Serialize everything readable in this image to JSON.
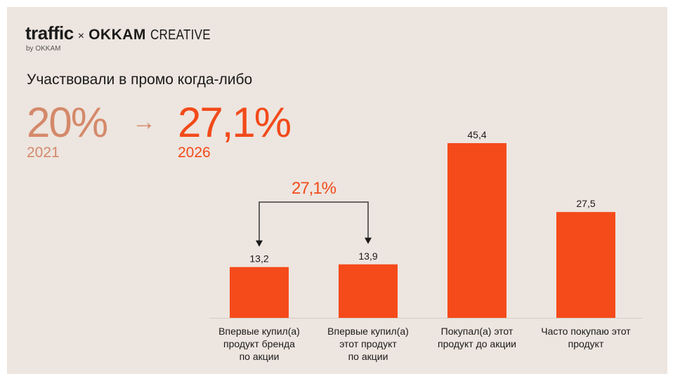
{
  "logo": {
    "traffic": "traffic",
    "cross": "×",
    "okkam": "OKKAM",
    "creative": "CREATIVE",
    "by": "by OKKAM"
  },
  "heading": "Участвовали в промо когда-либо",
  "stat_left": {
    "value": "20%",
    "year": "2021"
  },
  "arrow": "→",
  "stat_right": {
    "value": "27,1%",
    "year": "2026"
  },
  "colors": {
    "bar": "#f54a1a",
    "accent": "#f24a1a",
    "muted": "#d4896a",
    "background": "#ede5df"
  },
  "chart_data": {
    "type": "bar",
    "categories": [
      [
        "Впервые купил(а)",
        "продукт бренда",
        "по акции"
      ],
      [
        "Впервые купил(а)",
        "этот продукт",
        "по акции"
      ],
      [
        "Покупал(а) этот",
        "продукт до акции"
      ],
      [
        "Часто покупаю этот",
        "продукт"
      ]
    ],
    "values": [
      13.2,
      13.9,
      45.4,
      27.5
    ],
    "labels": [
      "13,2",
      "13,9",
      "45,4",
      "27,5"
    ],
    "ylim": [
      0,
      45.4
    ],
    "annotation": {
      "text": "27,1%",
      "spans": [
        0,
        1
      ]
    },
    "grid": false,
    "legend": "none"
  }
}
